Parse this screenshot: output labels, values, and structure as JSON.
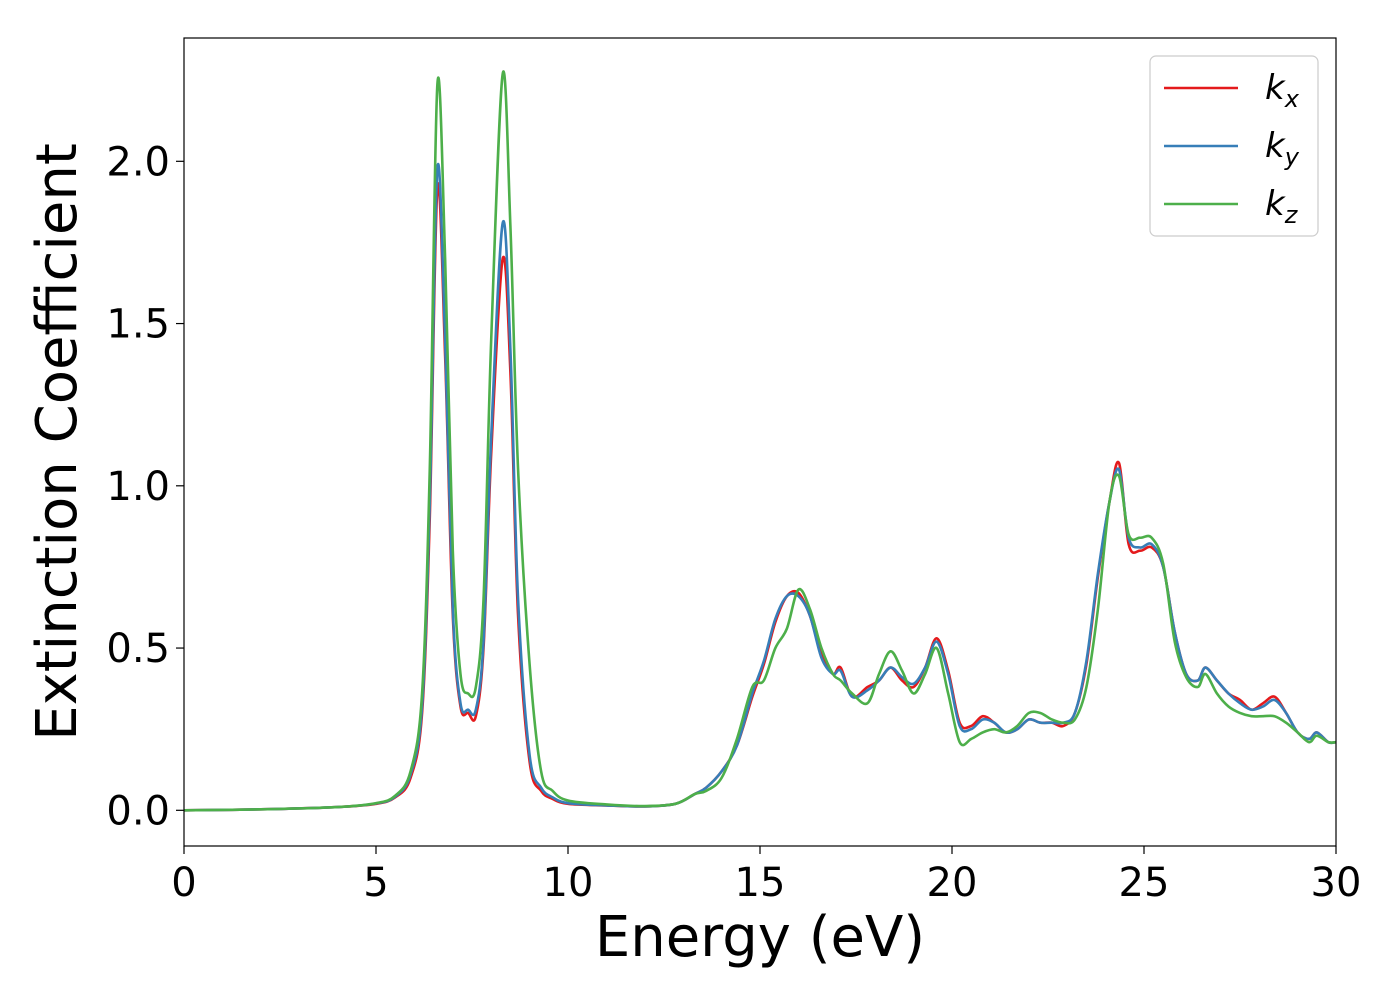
{
  "chart_data": {
    "type": "line",
    "title": "",
    "xlabel": "Energy (eV)",
    "ylabel": "Extinction Coefficient",
    "xlim": [
      0,
      30
    ],
    "ylim": [
      -0.11,
      2.38
    ],
    "xticks": [
      0,
      5,
      10,
      15,
      20,
      25,
      30
    ],
    "xtick_labels": [
      "0",
      "5",
      "10",
      "15",
      "20",
      "25",
      "30"
    ],
    "yticks": [
      0.0,
      0.5,
      1.0,
      1.5,
      2.0
    ],
    "ytick_labels": [
      "0.0",
      "0.5",
      "1.0",
      "1.5",
      "2.0"
    ],
    "grid": false,
    "legend_position": "top-right",
    "series": [
      {
        "name": "k",
        "subscript": "x",
        "color": "#e41a1c",
        "x": [
          0,
          2,
          4,
          5,
          5.5,
          5.9,
          6.2,
          6.4,
          6.6,
          6.8,
          7.0,
          7.2,
          7.4,
          7.6,
          7.8,
          8.0,
          8.3,
          8.5,
          8.7,
          9.0,
          9.3,
          9.6,
          10,
          11,
          12,
          12.8,
          13.3,
          13.6,
          14,
          14.4,
          14.8,
          15.1,
          15.4,
          15.7,
          16.0,
          16.3,
          16.6,
          16.9,
          17.1,
          17.4,
          17.8,
          18.1,
          18.4,
          18.7,
          19.0,
          19.3,
          19.6,
          19.9,
          20.2,
          20.5,
          20.8,
          21.1,
          21.4,
          21.7,
          22.0,
          22.3,
          22.6,
          22.9,
          23.2,
          23.5,
          23.8,
          24.1,
          24.35,
          24.6,
          24.9,
          25.2,
          25.5,
          25.8,
          26.1,
          26.4,
          26.6,
          26.9,
          27.2,
          27.5,
          27.8,
          28.1,
          28.4,
          28.7,
          29.0,
          29.3,
          29.5,
          29.8,
          30
        ],
        "y": [
          0,
          0.003,
          0.01,
          0.02,
          0.04,
          0.1,
          0.3,
          0.9,
          1.92,
          1.4,
          0.6,
          0.32,
          0.3,
          0.29,
          0.5,
          1.1,
          1.7,
          1.35,
          0.6,
          0.15,
          0.06,
          0.035,
          0.02,
          0.015,
          0.012,
          0.02,
          0.05,
          0.07,
          0.12,
          0.2,
          0.35,
          0.45,
          0.58,
          0.66,
          0.67,
          0.6,
          0.48,
          0.42,
          0.44,
          0.35,
          0.38,
          0.4,
          0.44,
          0.4,
          0.38,
          0.44,
          0.53,
          0.43,
          0.27,
          0.26,
          0.29,
          0.27,
          0.24,
          0.25,
          0.28,
          0.27,
          0.27,
          0.26,
          0.3,
          0.45,
          0.72,
          0.95,
          1.07,
          0.82,
          0.8,
          0.81,
          0.75,
          0.55,
          0.42,
          0.4,
          0.44,
          0.4,
          0.36,
          0.34,
          0.31,
          0.33,
          0.35,
          0.3,
          0.24,
          0.22,
          0.24,
          0.21,
          0.21
        ]
      },
      {
        "name": "k",
        "subscript": "y",
        "color": "#377eb8",
        "x": [
          0,
          2,
          4,
          5,
          5.5,
          5.9,
          6.2,
          6.4,
          6.6,
          6.8,
          7.0,
          7.2,
          7.4,
          7.6,
          7.8,
          8.0,
          8.3,
          8.5,
          8.7,
          9.0,
          9.3,
          9.6,
          10,
          11,
          12,
          12.8,
          13.3,
          13.6,
          14,
          14.4,
          14.8,
          15.1,
          15.4,
          15.7,
          16.0,
          16.3,
          16.6,
          16.9,
          17.1,
          17.4,
          17.8,
          18.1,
          18.4,
          18.7,
          19.0,
          19.3,
          19.6,
          19.9,
          20.2,
          20.5,
          20.8,
          21.1,
          21.4,
          21.7,
          22.0,
          22.3,
          22.6,
          22.9,
          23.2,
          23.5,
          23.8,
          24.1,
          24.35,
          24.6,
          24.9,
          25.2,
          25.5,
          25.8,
          26.1,
          26.4,
          26.6,
          26.9,
          27.2,
          27.5,
          27.8,
          28.1,
          28.4,
          28.7,
          29.0,
          29.3,
          29.5,
          29.8,
          30
        ],
        "y": [
          0,
          0.003,
          0.01,
          0.021,
          0.042,
          0.11,
          0.32,
          0.95,
          1.98,
          1.45,
          0.62,
          0.33,
          0.31,
          0.31,
          0.52,
          1.15,
          1.81,
          1.42,
          0.65,
          0.17,
          0.07,
          0.04,
          0.022,
          0.015,
          0.012,
          0.02,
          0.05,
          0.07,
          0.12,
          0.2,
          0.36,
          0.46,
          0.59,
          0.66,
          0.66,
          0.6,
          0.47,
          0.42,
          0.43,
          0.35,
          0.37,
          0.4,
          0.44,
          0.41,
          0.39,
          0.44,
          0.52,
          0.42,
          0.26,
          0.25,
          0.28,
          0.27,
          0.24,
          0.25,
          0.28,
          0.27,
          0.27,
          0.27,
          0.3,
          0.46,
          0.73,
          0.95,
          1.05,
          0.84,
          0.81,
          0.82,
          0.75,
          0.55,
          0.42,
          0.4,
          0.44,
          0.4,
          0.36,
          0.33,
          0.31,
          0.32,
          0.34,
          0.3,
          0.24,
          0.22,
          0.24,
          0.21,
          0.21
        ]
      },
      {
        "name": "k",
        "subscript": "z",
        "color": "#4daf4a",
        "x": [
          0,
          2,
          4,
          5,
          5.5,
          5.9,
          6.2,
          6.4,
          6.6,
          6.8,
          7.0,
          7.2,
          7.4,
          7.6,
          7.8,
          8.0,
          8.3,
          8.5,
          8.7,
          9.0,
          9.3,
          9.6,
          10,
          11,
          12,
          12.8,
          13.3,
          13.6,
          14,
          14.4,
          14.8,
          15.1,
          15.4,
          15.7,
          16.0,
          16.3,
          16.6,
          16.9,
          17.1,
          17.4,
          17.8,
          18.1,
          18.4,
          18.7,
          19.0,
          19.3,
          19.6,
          19.9,
          20.2,
          20.5,
          20.8,
          21.1,
          21.4,
          21.7,
          22.0,
          22.3,
          22.6,
          22.9,
          23.2,
          23.5,
          23.8,
          24.1,
          24.35,
          24.6,
          24.9,
          25.2,
          25.5,
          25.8,
          26.1,
          26.4,
          26.6,
          26.9,
          27.2,
          27.5,
          27.8,
          28.1,
          28.4,
          28.7,
          29.0,
          29.3,
          29.5,
          29.8,
          30
        ],
        "y": [
          0,
          0.003,
          0.01,
          0.022,
          0.045,
          0.12,
          0.36,
          1.05,
          2.24,
          1.7,
          0.8,
          0.42,
          0.36,
          0.38,
          0.65,
          1.45,
          2.27,
          1.8,
          1.05,
          0.45,
          0.12,
          0.06,
          0.03,
          0.018,
          0.013,
          0.02,
          0.05,
          0.06,
          0.1,
          0.22,
          0.38,
          0.4,
          0.5,
          0.56,
          0.68,
          0.62,
          0.5,
          0.42,
          0.4,
          0.36,
          0.33,
          0.42,
          0.49,
          0.43,
          0.36,
          0.42,
          0.5,
          0.36,
          0.21,
          0.22,
          0.24,
          0.25,
          0.24,
          0.26,
          0.3,
          0.3,
          0.28,
          0.27,
          0.28,
          0.38,
          0.62,
          0.95,
          1.03,
          0.85,
          0.84,
          0.84,
          0.76,
          0.52,
          0.41,
          0.38,
          0.42,
          0.36,
          0.32,
          0.3,
          0.29,
          0.29,
          0.29,
          0.27,
          0.24,
          0.21,
          0.23,
          0.21,
          0.21
        ]
      }
    ]
  }
}
